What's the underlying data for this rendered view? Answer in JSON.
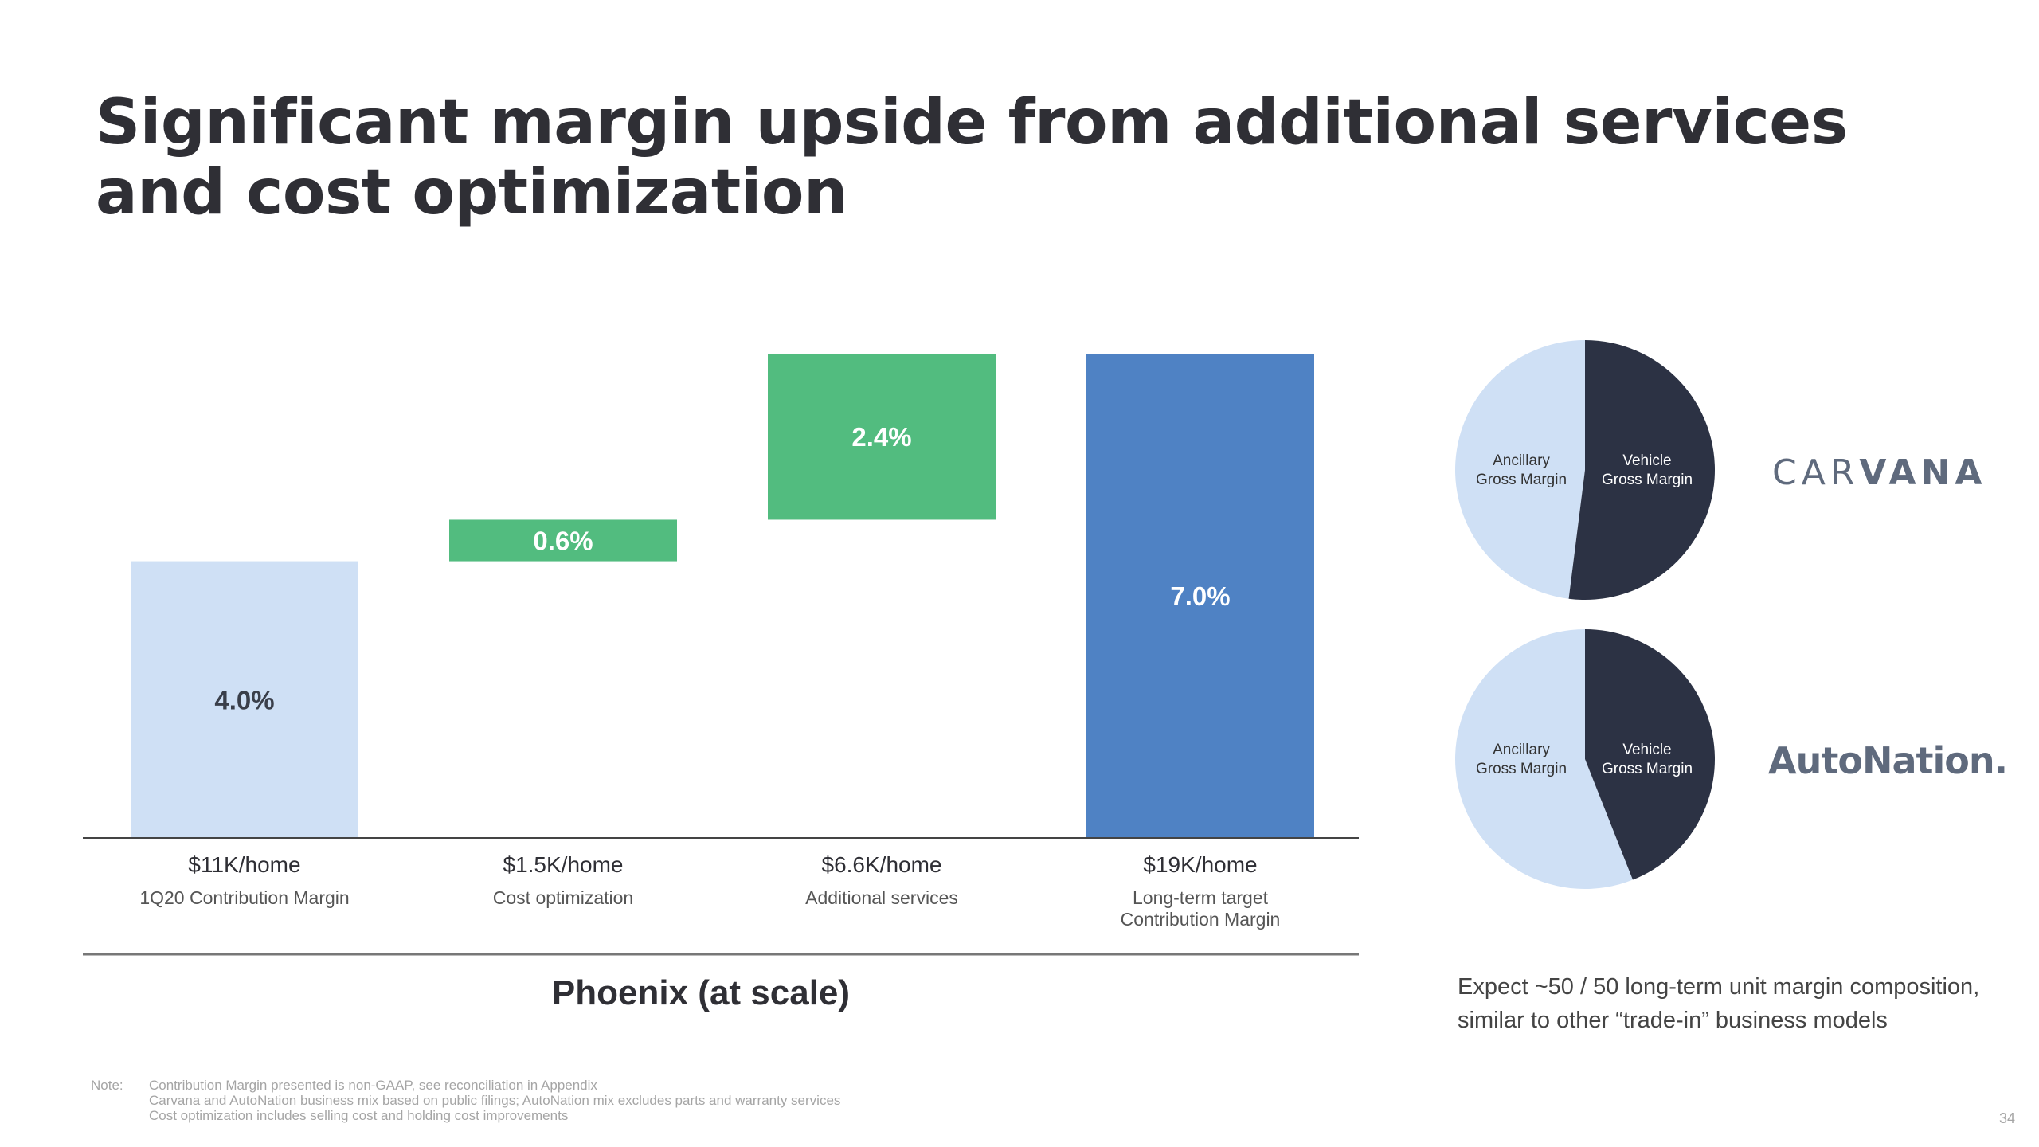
{
  "title": "Significant margin upside from additional services and cost optimization",
  "chart_data": {
    "type": "waterfall",
    "title": "Phoenix (at scale)",
    "unit": "%",
    "bars": [
      {
        "category": "1Q20 Contribution Margin",
        "value_text": "$11K/home",
        "label": "4.0%",
        "start": 0,
        "end": 4.0,
        "color": "#cfe0f5",
        "label_color": "#3a3f4a"
      },
      {
        "category": "Cost optimization",
        "value_text": "$1.5K/home",
        "label": "0.6%",
        "start": 4.0,
        "end": 4.6,
        "color": "#52bc7f",
        "label_color": "#ffffff"
      },
      {
        "category": "Additional services",
        "value_text": "$6.6K/home",
        "label": "2.4%",
        "start": 4.6,
        "end": 7.0,
        "color": "#52bc7f",
        "label_color": "#ffffff"
      },
      {
        "category": "Long-term target\nContribution Margin",
        "value_text": "$19K/home",
        "label": "7.0%",
        "start": 0,
        "end": 7.0,
        "color": "#4f82c4",
        "label_color": "#ffffff"
      }
    ],
    "ylim": [
      0,
      7.0
    ]
  },
  "pies": [
    {
      "brand": "CARVANA",
      "slices": [
        {
          "label": "Ancillary\nGross Margin",
          "value": 48,
          "color": "#cfe0f5"
        },
        {
          "label": "Vehicle\nGross Margin",
          "value": 52,
          "color": "#2c3244"
        }
      ]
    },
    {
      "brand": "AutoNation.",
      "slices": [
        {
          "label": "Ancillary\nGross Margin",
          "value": 56,
          "color": "#cfe0f5"
        },
        {
          "label": "Vehicle\nGross Margin",
          "value": 44,
          "color": "#2c3244"
        }
      ]
    }
  ],
  "brands": {
    "carvana_light": "CAR",
    "carvana_bold": "VANA",
    "autonation": "AutoNation."
  },
  "expect_text": "Expect ~50 / 50 long-term unit margin composition, similar to other “trade-in” business models",
  "note": {
    "key": "Note:",
    "lines": [
      "Contribution Margin presented is non-GAAP, see reconciliation in Appendix",
      "Carvana and AutoNation business mix based on public filings; AutoNation mix excludes parts and warranty services",
      "Cost optimization includes selling cost and holding cost improvements"
    ]
  },
  "page_number": "34"
}
